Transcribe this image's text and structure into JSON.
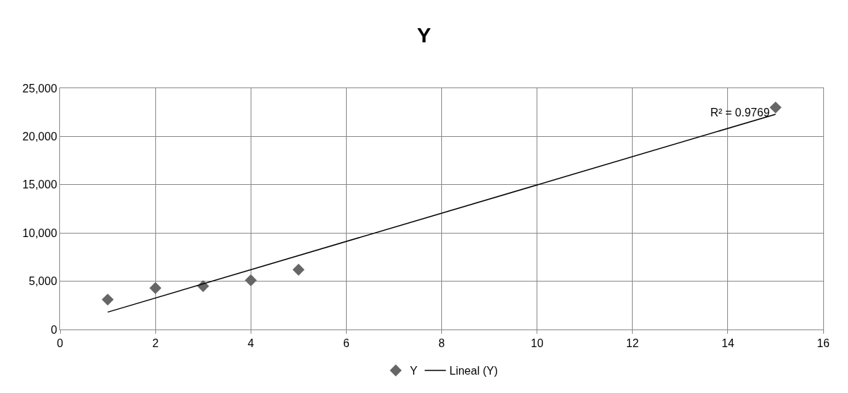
{
  "chart_data": {
    "type": "scatter",
    "title": "Y",
    "x": [
      1,
      2,
      3,
      4,
      5,
      15
    ],
    "series": [
      {
        "name": "Y",
        "color": "#666666",
        "marker": "diamond",
        "values": [
          3100,
          4300,
          4500,
          5100,
          6200,
          23000
        ]
      },
      {
        "name": "Lineal (Y)",
        "type": "line",
        "color": "#000000",
        "marker": "none",
        "line_style": "solid",
        "x": [
          1,
          15
        ],
        "values": [
          1800,
          22300
        ]
      }
    ],
    "xlim": [
      0,
      16
    ],
    "xticks": [
      0,
      2,
      4,
      6,
      8,
      10,
      12,
      14,
      16
    ],
    "ylim": [
      0,
      25000
    ],
    "yticks": [
      {
        "value": 0,
        "label": "0"
      },
      {
        "value": 5000,
        "label": "5,000"
      },
      {
        "value": 10000,
        "label": "10,000"
      },
      {
        "value": 15000,
        "label": "15,000"
      },
      {
        "value": 20000,
        "label": "20,000"
      },
      {
        "value": 25000,
        "label": "25,000"
      }
    ],
    "grid": true,
    "legend": "bottom",
    "annotations": [
      "R² = 0.9769"
    ]
  }
}
